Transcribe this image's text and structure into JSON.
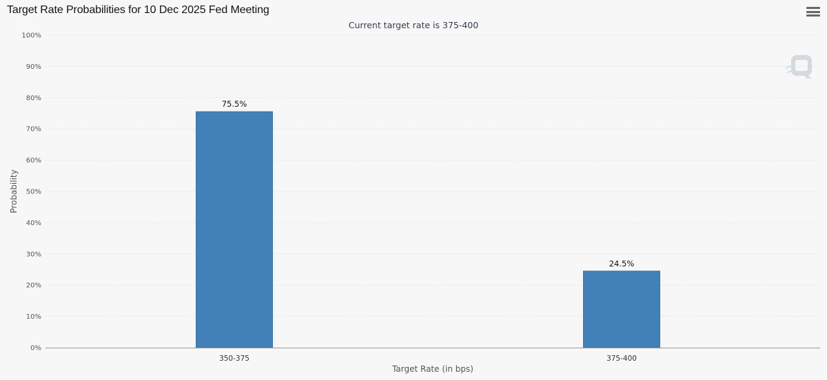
{
  "header": {
    "title": "Target Rate Probabilities for 10 Dec 2025 Fed Meeting",
    "menu_icon": "hamburger-menu-icon",
    "logo_icon": "q-logo-icon"
  },
  "colors": {
    "bar": "#4280b8",
    "bar_edge": "#3a73a7",
    "grid": "#cfcfcf",
    "background": "#f7f7f7"
  },
  "chart_data": {
    "type": "bar",
    "subtitle": "Current target rate is 375-400",
    "xlabel": "Target Rate (in bps)",
    "ylabel": "Probability",
    "categories": [
      "350-375",
      "375-400"
    ],
    "values": [
      75.5,
      24.5
    ],
    "data_labels": [
      "75.5%",
      "24.5%"
    ],
    "ylim": [
      0,
      100
    ],
    "yticks": [
      "0%",
      "10%",
      "20%",
      "30%",
      "40%",
      "50%",
      "60%",
      "70%",
      "80%",
      "90%",
      "100%"
    ],
    "grid": true,
    "grid_style": "dotted",
    "legend": "none"
  }
}
